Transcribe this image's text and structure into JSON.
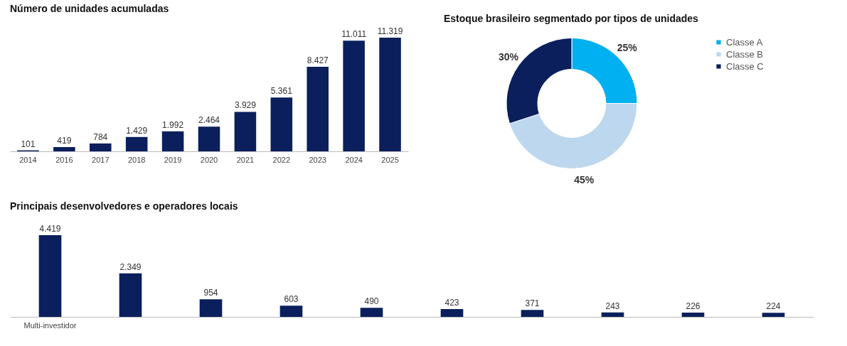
{
  "chart_data": [
    {
      "type": "bar",
      "title": "Número de unidades acumuladas",
      "categories": [
        "2014",
        "2016",
        "2017",
        "2018",
        "2019",
        "2020",
        "2021",
        "2022",
        "2023",
        "2024",
        "2025"
      ],
      "values": [
        101,
        419,
        784,
        1429,
        1992,
        2464,
        3929,
        5361,
        8427,
        11011,
        11319
      ],
      "value_labels": [
        "101",
        "419",
        "784",
        "1.429",
        "1.992",
        "2.464",
        "3.929",
        "5.361",
        "8.427",
        "11.011",
        "11.319"
      ],
      "color": "#0a1f5c"
    },
    {
      "type": "donut",
      "title": "Estoque brasileiro segmentado por tipos de unidades",
      "categories": [
        "Classe A",
        "Classe B",
        "Classe C"
      ],
      "values": [
        25,
        45,
        30
      ],
      "colors": [
        "#00b0f0",
        "#bdd7ee",
        "#0a1f5c"
      ],
      "value_labels": [
        "25%",
        "45%",
        "30%"
      ],
      "legend": "right"
    },
    {
      "type": "bar",
      "title": "Principais desenvolvedores e operadores locais",
      "categories": [
        "Multi-investidor",
        null,
        null,
        null,
        null,
        null,
        null,
        null,
        null,
        null
      ],
      "values": [
        4419,
        2349,
        954,
        603,
        490,
        423,
        371,
        243,
        226,
        224
      ],
      "value_labels": [
        "4.419",
        "2.349",
        "954",
        "603",
        "490",
        "423",
        "371",
        "243",
        "226",
        "224"
      ],
      "color": "#0a1f5c"
    }
  ]
}
